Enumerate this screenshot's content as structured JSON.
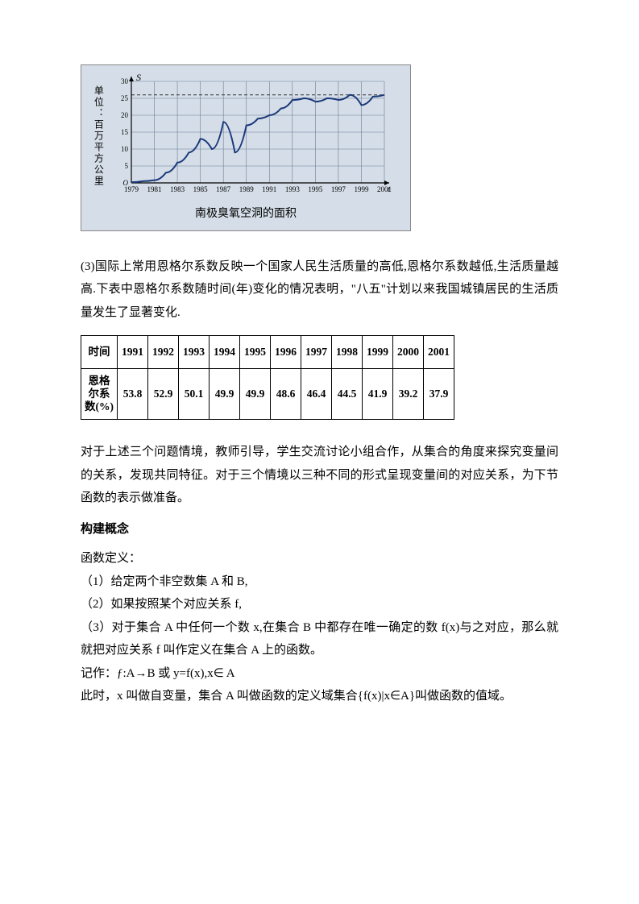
{
  "chart": {
    "type": "line",
    "title": "南极臭氧空洞的面积",
    "y_unit": "单位：百万平方公里",
    "y_axis_label": "S",
    "x_axis_label": "t",
    "x_ticks": [
      "1979",
      "1981",
      "1983",
      "1985",
      "1987",
      "1989",
      "1991",
      "1993",
      "1995",
      "1997",
      "1999",
      "2001"
    ],
    "y_ticks": [
      "O",
      "5",
      "10",
      "15",
      "20",
      "25",
      "30"
    ],
    "ylim": [
      0,
      30
    ],
    "xlim": [
      1979,
      2001
    ],
    "dashed_y": 26,
    "series": [
      {
        "x": 1979,
        "y": 0.2
      },
      {
        "x": 1980,
        "y": 0.5
      },
      {
        "x": 1981,
        "y": 0.8
      },
      {
        "x": 1982,
        "y": 3
      },
      {
        "x": 1983,
        "y": 6
      },
      {
        "x": 1984,
        "y": 9
      },
      {
        "x": 1985,
        "y": 13
      },
      {
        "x": 1986,
        "y": 10
      },
      {
        "x": 1987,
        "y": 18
      },
      {
        "x": 1988,
        "y": 9
      },
      {
        "x": 1989,
        "y": 17
      },
      {
        "x": 1990,
        "y": 19
      },
      {
        "x": 1991,
        "y": 20
      },
      {
        "x": 1992,
        "y": 22
      },
      {
        "x": 1993,
        "y": 24.5
      },
      {
        "x": 1994,
        "y": 25
      },
      {
        "x": 1995,
        "y": 24
      },
      {
        "x": 1996,
        "y": 25
      },
      {
        "x": 1997,
        "y": 24.5
      },
      {
        "x": 1998,
        "y": 26
      },
      {
        "x": 1999,
        "y": 23
      },
      {
        "x": 2000,
        "y": 25.5
      },
      {
        "x": 2001,
        "y": 26
      }
    ],
    "line_color": "#1b3a7a",
    "line_width": 2,
    "grid_color": "#6b7a95",
    "bg_color": "#d5dee8",
    "tick_fontsize": 9
  },
  "p3_intro": "(3)国际上常用恩格尔系数反映一个国家人民生活质量的高低,恩格尔系数越低,生活质量越高.下表中恩格尔系数随时间(年)变化的情况表明，\"八五\"计划以来我国城镇居民的生活质量发生了显著变化.",
  "table": {
    "row1_label": "时间",
    "row2_label": "恩格尔系数(%)",
    "years": [
      "1991",
      "1992",
      "1993",
      "1994",
      "1995",
      "1996",
      "1997",
      "1998",
      "1999",
      "2000",
      "2001"
    ],
    "values": [
      "53.8",
      "52.9",
      "50.1",
      "49.9",
      "49.9",
      "48.6",
      "46.4",
      "44.5",
      "41.9",
      "39.2",
      "37.9"
    ]
  },
  "discussion": "对于上述三个问题情境，教师引导，学生交流讨论小组合作，从集合的角度来探究变量间的关系，发现共同特征。对于三个情境以三种不同的形式呈现变量间的对应关系，为下节函数的表示做准备。",
  "section_title": "构建概念",
  "def_label": "函数定义：",
  "def1": "（1）给定两个非空数集 A 和 B,",
  "def2": "（2）如果按照某个对应关系 f,",
  "def3": "（3）对于集合 A 中任何一个数 x,在集合 B 中都存在唯一确定的数 f(x)与之对应，那么就就把对应关系 f 叫作定义在集合 A 上的函数。",
  "notation": "记作：ƒ:A→B 或 y=f(x),x∈ A",
  "closing": "此时，x 叫做自变量，集合 A 叫做函数的定义域集合{f(x)|x∈A}叫做函数的值域。"
}
